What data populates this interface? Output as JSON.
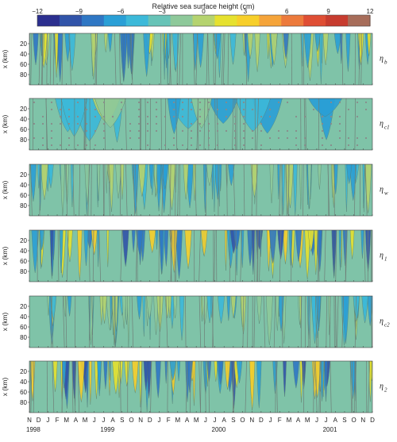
{
  "chart_data": {
    "type": "heatmap",
    "title": "Relative sea surface height (cm)",
    "colorbar": {
      "ticks": [
        -12,
        -9,
        -6,
        -3,
        0,
        3,
        6,
        9,
        12
      ],
      "range": [
        -12,
        12
      ],
      "colors": [
        "#2b2f8f",
        "#3154a9",
        "#2f77c4",
        "#2a9fd6",
        "#3cb9d9",
        "#67c3b7",
        "#8ec99a",
        "#b5d36f",
        "#e6e12f",
        "#f7cf2a",
        "#f5a43a",
        "#ec7a3c",
        "#df4e34",
        "#c73c2f",
        "#a76d5a"
      ]
    },
    "ylabel": "x (km)",
    "y_ticks": [
      20,
      40,
      60,
      80
    ],
    "y_range": [
      0,
      100
    ],
    "x_month_labels": [
      "N",
      "D",
      "J",
      "F",
      "M",
      "A",
      "M",
      "J",
      "J",
      "A",
      "S",
      "O",
      "N",
      "D",
      "J",
      "F",
      "M",
      "A",
      "M",
      "J",
      "J",
      "A",
      "S",
      "O",
      "N",
      "D",
      "J",
      "F",
      "M",
      "A",
      "M",
      "J",
      "J",
      "A",
      "S",
      "O",
      "N",
      "D"
    ],
    "x_year_labels": [
      {
        "label": "1998",
        "month_index": 0
      },
      {
        "label": "1999",
        "month_index": 8
      },
      {
        "label": "2000",
        "month_index": 20
      },
      {
        "label": "2001",
        "month_index": 32
      }
    ],
    "panels": [
      {
        "name": "η",
        "sub": "b"
      },
      {
        "name": "η",
        "sub": "c1"
      },
      {
        "name": "η",
        "sub": "w"
      },
      {
        "name": "η",
        "sub": "1"
      },
      {
        "name": "η",
        "sub": "c2"
      },
      {
        "name": "η",
        "sub": "2"
      }
    ]
  }
}
